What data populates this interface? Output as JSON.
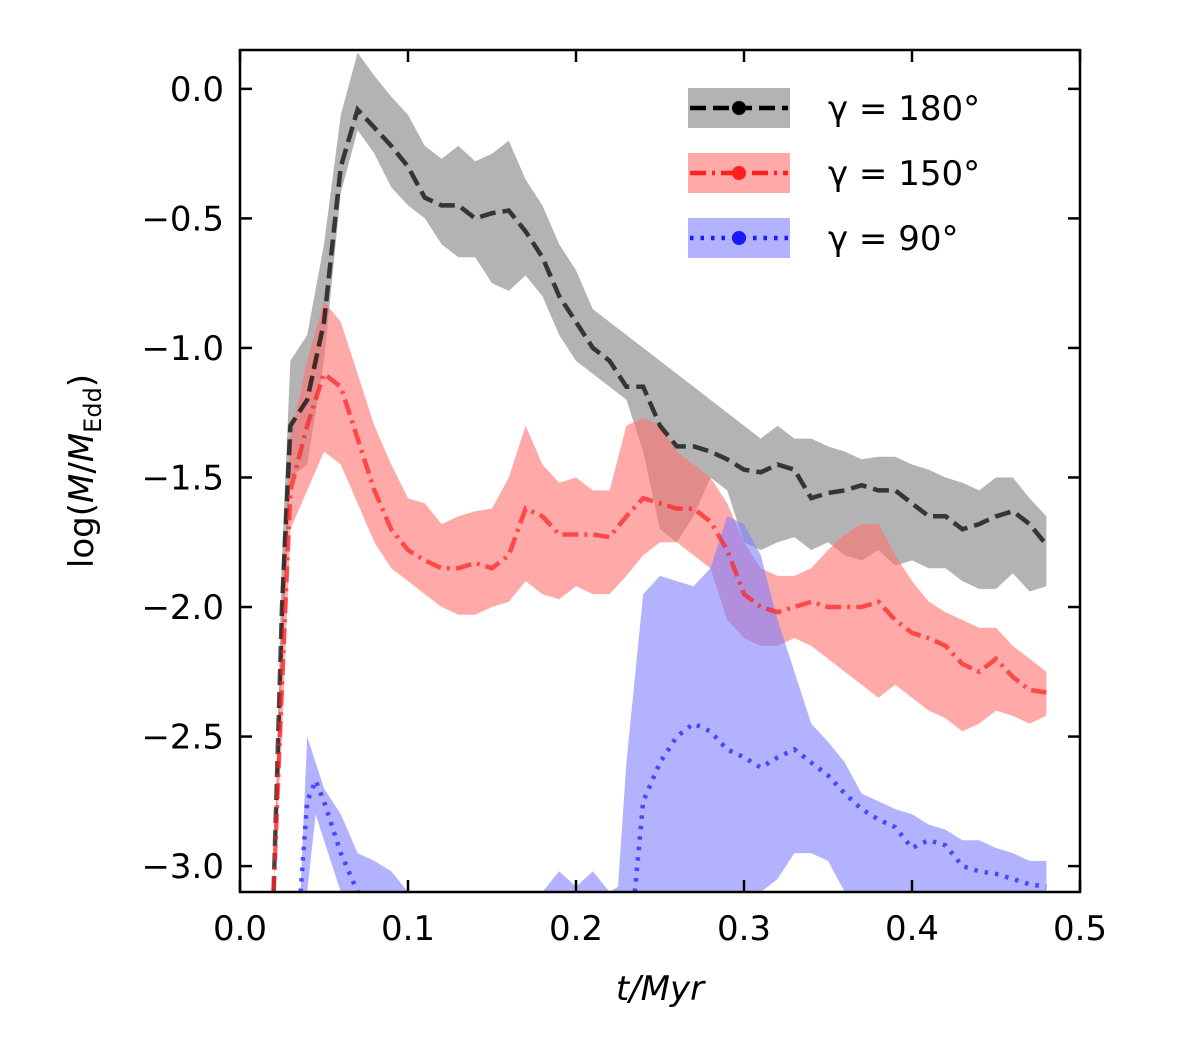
{
  "chart_data": {
    "type": "line",
    "xlabel": "t/Myr",
    "ylabel": "log(Ṁ/Ṁ_Edd)",
    "ylabel_main": "log(",
    "ylabel_mdot": "M",
    "ylabel_div": "/",
    "ylabel_mdot2": "M",
    "ylabel_sub": "Edd",
    "ylabel_close": ")",
    "xlim": [
      0.0,
      0.5
    ],
    "ylim": [
      -3.1,
      0.15
    ],
    "x_ticks": [
      0.0,
      0.1,
      0.2,
      0.3,
      0.4,
      0.5
    ],
    "x_tick_labels": [
      "0.0",
      "0.1",
      "0.2",
      "0.3",
      "0.4",
      "0.5"
    ],
    "y_ticks": [
      0.0,
      -0.5,
      -1.0,
      -1.5,
      -2.0,
      -2.5,
      -3.0
    ],
    "y_tick_labels": [
      "0.0",
      "−0.5",
      "−1.0",
      "−1.5",
      "−2.0",
      "−2.5",
      "−3.0"
    ],
    "grid": false,
    "legend_position": "top-right",
    "series": [
      {
        "name": "γ = 180°",
        "legend_label": "γ = 180°",
        "color": "#000000",
        "band_color": "#808080",
        "line_style": "dashed",
        "x": [
          0.02,
          0.025,
          0.03,
          0.04,
          0.05,
          0.06,
          0.07,
          0.08,
          0.09,
          0.1,
          0.11,
          0.12,
          0.13,
          0.14,
          0.15,
          0.16,
          0.17,
          0.18,
          0.19,
          0.2,
          0.21,
          0.22,
          0.23,
          0.24,
          0.25,
          0.26,
          0.27,
          0.28,
          0.29,
          0.3,
          0.31,
          0.32,
          0.33,
          0.34,
          0.35,
          0.36,
          0.37,
          0.38,
          0.39,
          0.4,
          0.41,
          0.42,
          0.43,
          0.44,
          0.45,
          0.46,
          0.47,
          0.48
        ],
        "y": [
          -3.1,
          -2.0,
          -1.3,
          -1.2,
          -0.9,
          -0.3,
          -0.08,
          -0.15,
          -0.22,
          -0.3,
          -0.42,
          -0.45,
          -0.45,
          -0.5,
          -0.48,
          -0.47,
          -0.55,
          -0.65,
          -0.8,
          -0.9,
          -1.0,
          -1.05,
          -1.15,
          -1.15,
          -1.3,
          -1.38,
          -1.38,
          -1.4,
          -1.43,
          -1.47,
          -1.48,
          -1.45,
          -1.47,
          -1.58,
          -1.56,
          -1.55,
          -1.53,
          -1.55,
          -1.55,
          -1.6,
          -1.65,
          -1.65,
          -1.7,
          -1.68,
          -1.65,
          -1.63,
          -1.68,
          -1.76
        ],
        "lower": [
          -3.1,
          -2.2,
          -1.5,
          -1.45,
          -1.05,
          -0.4,
          -0.16,
          -0.25,
          -0.38,
          -0.45,
          -0.5,
          -0.6,
          -0.65,
          -0.65,
          -0.75,
          -0.78,
          -0.72,
          -0.8,
          -0.95,
          -1.05,
          -1.1,
          -1.15,
          -1.2,
          -1.4,
          -1.7,
          -1.75,
          -1.65,
          -1.5,
          -1.55,
          -1.75,
          -1.78,
          -1.75,
          -1.73,
          -1.78,
          -1.75,
          -1.8,
          -1.82,
          -1.78,
          -1.84,
          -1.82,
          -1.85,
          -1.85,
          -1.9,
          -1.93,
          -1.93,
          -1.87,
          -1.94,
          -1.92
        ],
        "upper": [
          -3.1,
          -1.8,
          -1.05,
          -0.95,
          -0.6,
          -0.1,
          0.14,
          0.05,
          -0.03,
          -0.1,
          -0.22,
          -0.27,
          -0.22,
          -0.28,
          -0.25,
          -0.2,
          -0.35,
          -0.45,
          -0.6,
          -0.7,
          -0.85,
          -0.9,
          -0.95,
          -1.0,
          -1.05,
          -1.1,
          -1.15,
          -1.2,
          -1.25,
          -1.3,
          -1.35,
          -1.3,
          -1.35,
          -1.35,
          -1.38,
          -1.4,
          -1.43,
          -1.42,
          -1.42,
          -1.45,
          -1.47,
          -1.5,
          -1.52,
          -1.55,
          -1.5,
          -1.5,
          -1.58,
          -1.65
        ]
      },
      {
        "name": "γ = 150°",
        "legend_label": "γ = 150°",
        "color": "#ff2020",
        "band_color": "#ff7070",
        "line_style": "dashdot",
        "x": [
          0.02,
          0.025,
          0.03,
          0.04,
          0.05,
          0.06,
          0.07,
          0.08,
          0.09,
          0.1,
          0.11,
          0.12,
          0.13,
          0.14,
          0.15,
          0.16,
          0.17,
          0.18,
          0.19,
          0.2,
          0.21,
          0.22,
          0.23,
          0.24,
          0.25,
          0.26,
          0.27,
          0.28,
          0.29,
          0.3,
          0.31,
          0.32,
          0.33,
          0.34,
          0.35,
          0.36,
          0.37,
          0.38,
          0.39,
          0.4,
          0.41,
          0.42,
          0.43,
          0.44,
          0.45,
          0.46,
          0.47,
          0.48
        ],
        "y": [
          -3.1,
          -2.3,
          -1.55,
          -1.3,
          -1.1,
          -1.15,
          -1.35,
          -1.55,
          -1.7,
          -1.78,
          -1.82,
          -1.85,
          -1.85,
          -1.83,
          -1.85,
          -1.8,
          -1.62,
          -1.65,
          -1.72,
          -1.72,
          -1.72,
          -1.73,
          -1.65,
          -1.58,
          -1.6,
          -1.62,
          -1.62,
          -1.67,
          -1.78,
          -1.95,
          -2.0,
          -2.02,
          -2.0,
          -1.98,
          -2.0,
          -2.0,
          -2.0,
          -1.98,
          -2.05,
          -2.1,
          -2.12,
          -2.15,
          -2.22,
          -2.25,
          -2.2,
          -2.27,
          -2.32,
          -2.33
        ],
        "lower": [
          -3.1,
          -2.5,
          -1.7,
          -1.55,
          -1.4,
          -1.45,
          -1.6,
          -1.75,
          -1.85,
          -1.9,
          -1.95,
          -2.0,
          -2.03,
          -2.03,
          -2.0,
          -1.98,
          -1.9,
          -1.95,
          -1.97,
          -1.92,
          -1.95,
          -1.95,
          -1.88,
          -1.8,
          -1.75,
          -1.75,
          -1.8,
          -1.85,
          -2.05,
          -2.12,
          -2.15,
          -2.15,
          -2.12,
          -2.15,
          -2.2,
          -2.25,
          -2.3,
          -2.35,
          -2.3,
          -2.35,
          -2.4,
          -2.43,
          -2.48,
          -2.45,
          -2.4,
          -2.42,
          -2.45,
          -2.42
        ],
        "upper": [
          -3.1,
          -2.0,
          -1.35,
          -1.05,
          -0.82,
          -0.9,
          -1.1,
          -1.3,
          -1.45,
          -1.58,
          -1.6,
          -1.68,
          -1.65,
          -1.63,
          -1.62,
          -1.5,
          -1.3,
          -1.45,
          -1.52,
          -1.5,
          -1.55,
          -1.55,
          -1.3,
          -1.27,
          -1.3,
          -1.4,
          -1.45,
          -1.5,
          -1.6,
          -1.75,
          -1.85,
          -1.88,
          -1.88,
          -1.85,
          -1.78,
          -1.72,
          -1.68,
          -1.68,
          -1.8,
          -1.9,
          -1.98,
          -2.02,
          -2.05,
          -2.08,
          -2.08,
          -2.15,
          -2.2,
          -2.25
        ]
      },
      {
        "name": "γ = 90°",
        "legend_label": "γ = 90°",
        "color": "#1a1aff",
        "band_color": "#7f7fff",
        "line_style": "dotted",
        "x_segments": [
          [
            0.036,
            0.04,
            0.045,
            0.05,
            0.06,
            0.07
          ],
          [
            0.235,
            0.24,
            0.25,
            0.26,
            0.27,
            0.28,
            0.29,
            0.3,
            0.31,
            0.32,
            0.33,
            0.34,
            0.35,
            0.36,
            0.37,
            0.38,
            0.39,
            0.4,
            0.41,
            0.42,
            0.43,
            0.44,
            0.45,
            0.46,
            0.47,
            0.48
          ]
        ],
        "y_segments": [
          [
            -3.1,
            -2.75,
            -2.67,
            -2.75,
            -2.95,
            -3.1
          ],
          [
            -3.1,
            -2.75,
            -2.6,
            -2.5,
            -2.45,
            -2.48,
            -2.55,
            -2.58,
            -2.62,
            -2.58,
            -2.55,
            -2.6,
            -2.65,
            -2.72,
            -2.78,
            -2.82,
            -2.85,
            -2.93,
            -2.9,
            -2.92,
            -3.0,
            -3.02,
            -3.03,
            -3.05,
            -3.07,
            -3.08
          ]
        ],
        "band_segments": [
          {
            "x": [
              0.036,
              0.04,
              0.045,
              0.05,
              0.06,
              0.07,
              0.08,
              0.09,
              0.1
            ],
            "lower": [
              -3.1,
              -3.1,
              -2.8,
              -2.9,
              -3.1,
              -3.1,
              -3.1,
              -3.1,
              -3.1
            ],
            "upper": [
              -3.1,
              -2.5,
              -2.6,
              -2.7,
              -2.8,
              -2.95,
              -2.98,
              -3.02,
              -3.1
            ]
          },
          {
            "x": [
              0.18,
              0.19,
              0.2,
              0.21,
              0.22,
              0.225,
              0.23,
              0.24,
              0.25,
              0.26,
              0.27,
              0.28,
              0.29,
              0.3,
              0.31,
              0.32,
              0.33,
              0.34,
              0.35,
              0.36,
              0.37,
              0.38,
              0.39,
              0.4,
              0.41,
              0.42,
              0.43,
              0.44,
              0.45,
              0.46,
              0.47,
              0.48
            ],
            "lower": [
              -3.1,
              -3.1,
              -3.1,
              -3.1,
              -3.1,
              -3.1,
              -3.1,
              -3.1,
              -3.1,
              -3.1,
              -3.1,
              -3.1,
              -3.1,
              -3.1,
              -3.1,
              -3.05,
              -2.95,
              -2.95,
              -2.98,
              -3.1,
              -3.1,
              -3.1,
              -3.1,
              -3.1,
              -3.1,
              -3.1,
              -3.1,
              -3.1,
              -3.1,
              -3.1,
              -3.1,
              -3.1
            ],
            "upper": [
              -3.1,
              -3.02,
              -3.08,
              -3.02,
              -3.1,
              -3.08,
              -2.6,
              -1.95,
              -1.88,
              -1.9,
              -1.92,
              -1.85,
              -1.65,
              -1.68,
              -1.8,
              -2.05,
              -2.25,
              -2.45,
              -2.52,
              -2.6,
              -2.72,
              -2.75,
              -2.78,
              -2.8,
              -2.84,
              -2.86,
              -2.9,
              -2.9,
              -2.93,
              -2.95,
              -2.98,
              -2.98
            ]
          }
        ]
      }
    ]
  }
}
